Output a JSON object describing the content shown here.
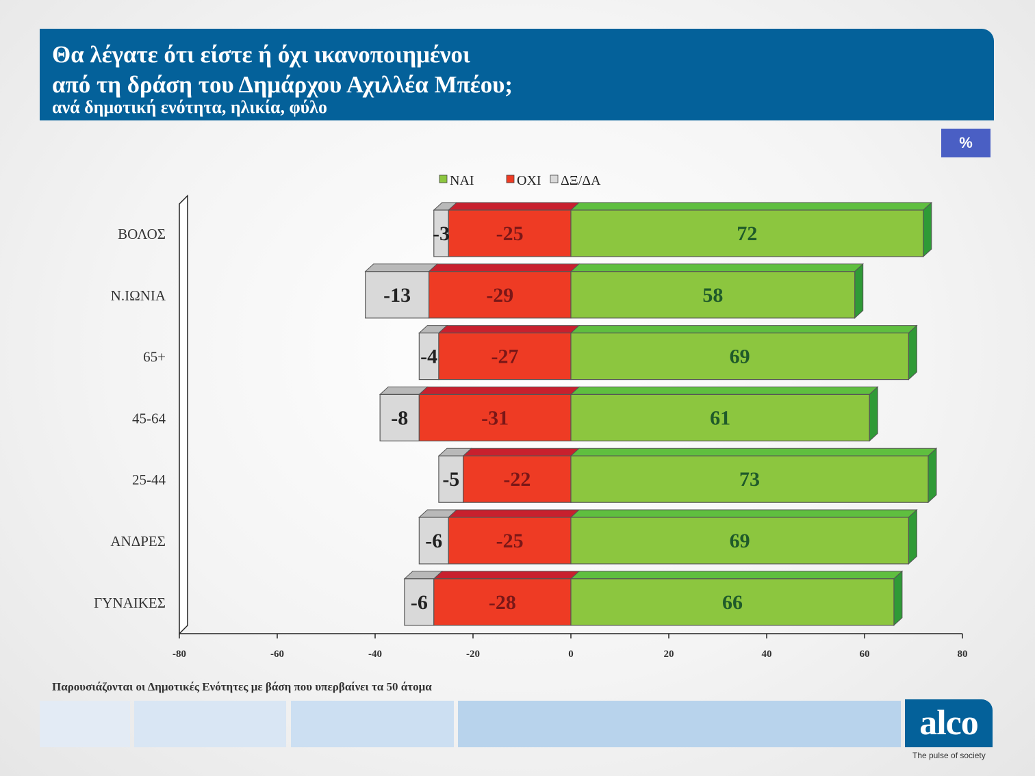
{
  "header": {
    "title_line1": "Θα λέγατε ότι είστε ή όχι ικανοποιημένοι",
    "title_line2": "από τη δράση του Δημάρχου Αχιλλέα Μπέου;",
    "subtitle": "ανά δημοτική ενότητα, ηλικία, φύλο"
  },
  "badge": "%",
  "footnote": "Παρουσιάζονται οι Δημοτικές Ενότητες  με βάση που υπερβαίνει τα 50 άτομα",
  "logo": {
    "text": "alco",
    "tagline": "The pulse of society"
  },
  "colors": {
    "header_bg": "#04619a",
    "yes_front": "#8cc63f",
    "yes_top": "#5fbf3f",
    "yes_side": "#2f9a36",
    "no_front": "#ee3b24",
    "no_top": "#c8202e",
    "dk_front": "#d9d9d9",
    "dk_top": "#b9b9b9"
  },
  "chart_data": {
    "type": "bar",
    "orientation": "horizontal",
    "stacked": true,
    "categories": [
      "ΒΟΛΟΣ",
      "Ν.ΙΩΝΙΑ",
      "65+",
      "45-64",
      "25-44",
      "ΑΝΔΡΕΣ",
      "ΓΥΝΑΙΚΕΣ"
    ],
    "series": [
      {
        "name": "ΝΑΙ",
        "color": "#8cc63f",
        "values": [
          72,
          58,
          69,
          61,
          73,
          69,
          66
        ]
      },
      {
        "name": "ΟΧΙ",
        "color": "#ee3b24",
        "values": [
          -25,
          -29,
          -27,
          -31,
          -22,
          -25,
          -28
        ]
      },
      {
        "name": "ΔΞ/ΔΑ",
        "color": "#d9d9d9",
        "values": [
          -3,
          -13,
          -4,
          -8,
          -5,
          -6,
          -6
        ]
      }
    ],
    "xlim": [
      -80,
      80
    ],
    "x_ticks": [
      "-80",
      "-60",
      "-40",
      "-20",
      "0",
      "20",
      "40",
      "60",
      "80"
    ],
    "legend_position": "top",
    "grid": false,
    "style": "3d"
  }
}
